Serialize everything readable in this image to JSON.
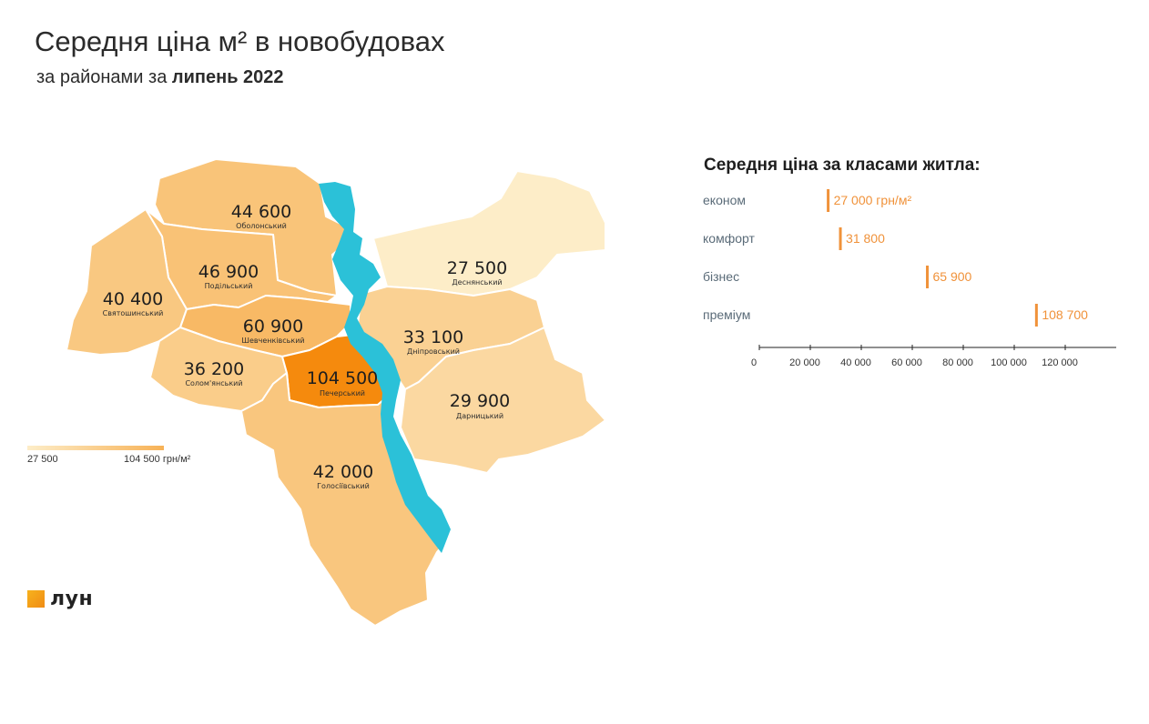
{
  "title": "Середня ціна м² в новобудовах",
  "subtitle": {
    "prefix": "за районами за",
    "period": "липень 2022"
  },
  "districts": [
    {
      "name": "Оболонський",
      "value": "44 600",
      "price": 44600
    },
    {
      "name": "Подільський",
      "value": "46 900",
      "price": 46900
    },
    {
      "name": "Святошинський",
      "value": "40 400",
      "price": 40400
    },
    {
      "name": "Шевченківський",
      "value": "60 900",
      "price": 60900
    },
    {
      "name": "Солом'янський",
      "value": "36 200",
      "price": 36200
    },
    {
      "name": "Печерський",
      "value": "104 500",
      "price": 104500
    },
    {
      "name": "Голосіївський",
      "value": "42 000",
      "price": 42000
    },
    {
      "name": "Деснянський",
      "value": "27 500",
      "price": 27500
    },
    {
      "name": "Дніпровський",
      "value": "33 100",
      "price": 33100
    },
    {
      "name": "Дарницький",
      "value": "29 900",
      "price": 29900
    }
  ],
  "legend": {
    "min": "27 500",
    "max": "104 500 грн/м²",
    "color_low": "#fdedc8",
    "color_high": "#f7b257"
  },
  "colors": {
    "river": "#2bc1d8",
    "accent": "#f0923a",
    "peak": "#f58a0d"
  },
  "logo": {
    "text": "лун",
    "icon": "lun-logo-square"
  },
  "chart_data": {
    "type": "bar",
    "title": "Середня ціна за класами житла:",
    "categories": [
      "економ",
      "комфорт",
      "бізнес",
      "преміум"
    ],
    "values": [
      27000,
      31800,
      65900,
      108700
    ],
    "value_labels": [
      "27 000 грн/м²",
      "31 800",
      "65 900",
      "108 700"
    ],
    "xticks": [
      "0",
      "20 000",
      "40 000",
      "60 000",
      "80 000",
      "100 000",
      "120 000"
    ],
    "xlim": [
      0,
      140000
    ],
    "grid": false
  }
}
